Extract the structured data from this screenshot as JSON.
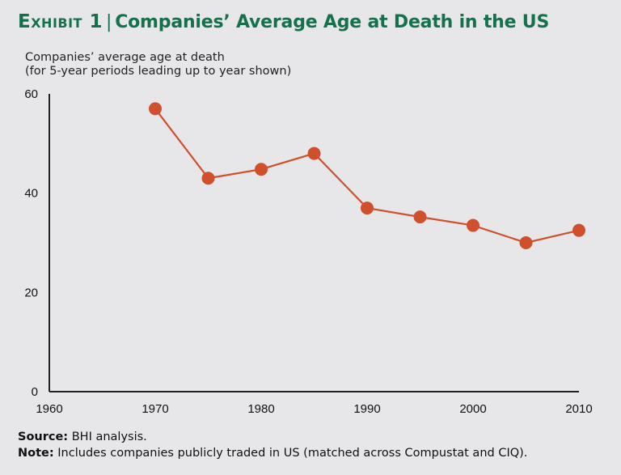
{
  "header": {
    "exhibit": "Exhibit 1",
    "separator": "|",
    "title": "Companies’ Average Age at Death in the US"
  },
  "footer": {
    "source_label": "Source:",
    "source_text": "BHI analysis.",
    "note_label": "Note:",
    "note_text": "Includes companies publicly traded in US (matched across Compustat and CIQ)."
  },
  "colors": {
    "title": "#17704c",
    "series": "#d0502e",
    "axis": "#222222",
    "background": "#e7e7e9"
  },
  "chart_data": {
    "type": "line",
    "title": "Companies’ Average Age at Death in the US",
    "ylabel_lines": [
      "Companies’ average age at death",
      "(for 5-year periods leading up to year shown)"
    ],
    "xlabel": "",
    "x": [
      1970,
      1975,
      1980,
      1985,
      1990,
      1995,
      2000,
      2005,
      2010
    ],
    "series": [
      {
        "name": "Average age at death",
        "values": [
          57,
          43,
          44.8,
          48,
          37,
          35.2,
          33.5,
          30,
          32.5
        ],
        "markers": true
      }
    ],
    "xlim": [
      1960,
      2010
    ],
    "ylim": [
      0,
      60
    ],
    "xticks": [
      1960,
      1970,
      1980,
      1990,
      2000,
      2010
    ],
    "yticks": [
      0,
      20,
      40,
      60
    ],
    "grid": false,
    "legend": "none"
  }
}
